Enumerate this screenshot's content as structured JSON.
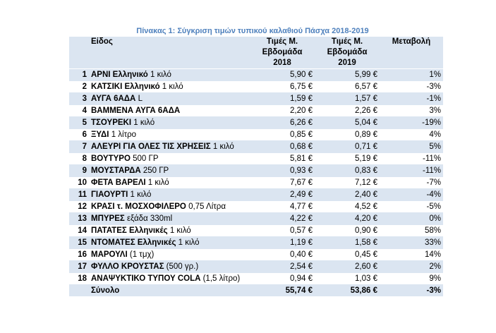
{
  "caption": "Πίνακας 1: Σύγκριση τιμών τυπικού καλαθιού Πάσχα 2018-2019",
  "headers": {
    "item": "Είδος",
    "price2018": [
      "Τιμές Μ.",
      "Εβδομάδα",
      "2018"
    ],
    "price2019": [
      "Τιμές Μ.",
      "Εβδομάδα",
      "2019"
    ],
    "change": "Μεταβολή"
  },
  "rows": [
    {
      "num": "1",
      "bold": "ΑΡΝΙ Ελληνικό",
      "rest": " 1 κιλό",
      "p2018": "5,90 €",
      "p2019": "5,99 €",
      "change": "1%"
    },
    {
      "num": "2",
      "bold": "ΚΑΤΣΙΚΙ Ελληνικό",
      "rest": " 1 κιλό",
      "p2018": "6,75 €",
      "p2019": "6,57 €",
      "change": "-3%"
    },
    {
      "num": "3",
      "bold": "ΑΥΓΑ 6ΑΔΑ",
      "rest": " L",
      "p2018": "1,59 €",
      "p2019": "1,57 €",
      "change": "-1%"
    },
    {
      "num": "4",
      "bold": "ΒΑΜΜΕΝΑ ΑΥΓΑ 6ΑΔΑ",
      "rest": "",
      "p2018": "2,20 €",
      "p2019": "2,26 €",
      "change": "3%"
    },
    {
      "num": "5",
      "bold": "ΤΣΟΥΡΕΚΙ",
      "rest": " 1 κιλό",
      "p2018": "6,26 €",
      "p2019": "5,04 €",
      "change": "-19%"
    },
    {
      "num": "6",
      "bold": "ΞΥΔΙ",
      "rest": " 1 λίτρο",
      "p2018": "0,85 €",
      "p2019": "0,89 €",
      "change": "4%"
    },
    {
      "num": "7",
      "bold": "ΑΛΕΥΡΙ ΓΙΑ ΟΛΕΣ ΤΙΣ ΧΡΗΣΕΙΣ",
      "rest": " 1 κιλό",
      "p2018": "0,68 €",
      "p2019": "0,71 €",
      "change": "5%"
    },
    {
      "num": "8",
      "bold": "ΒΟΥΤΥΡΟ",
      "rest": " 500 ΓΡ",
      "p2018": "5,81 €",
      "p2019": "5,19 €",
      "change": "-11%"
    },
    {
      "num": "9",
      "bold": "ΜΟΥΣΤΑΡΔΑ",
      "rest": " 250 ΓΡ",
      "p2018": "0,93 €",
      "p2019": "0,83 €",
      "change": "-11%"
    },
    {
      "num": "10",
      "bold": "ΦΕΤΑ ΒΑΡΕΛΙ",
      "rest": " 1 κιλό",
      "p2018": "7,67 €",
      "p2019": "7,12 €",
      "change": "-7%"
    },
    {
      "num": "11",
      "bold": "ΓΙΑΟΥΡΤΙ",
      "rest": " 1 κιλό",
      "p2018": "2,49 €",
      "p2019": "2,40 €",
      "change": "-4%"
    },
    {
      "num": "12",
      "bold": "ΚΡΑΣΙ τ. ΜΟΣΧΟΦΙΛΕΡΟ",
      "rest": " 0,75 Λίτρα",
      "p2018": "4,77 €",
      "p2019": "4,52 €",
      "change": "-5%"
    },
    {
      "num": "13",
      "bold": "ΜΠΥΡΕΣ",
      "rest": " εξάδα 330ml",
      "p2018": "4,22 €",
      "p2019": "4,20 €",
      "change": "0%"
    },
    {
      "num": "14",
      "bold": "ΠΑΤΑΤΕΣ Ελληνικές",
      "rest": " 1 κιλό",
      "p2018": "0,57 €",
      "p2019": "0,90 €",
      "change": "58%"
    },
    {
      "num": "15",
      "bold": "ΝΤΟΜΑΤΕΣ Ελληνικές",
      "rest": " 1 κιλό",
      "p2018": "1,19 €",
      "p2019": "1,58 €",
      "change": "33%"
    },
    {
      "num": "16",
      "bold": "ΜΑΡΟΥΛΙ",
      "rest": " (1 τμχ)",
      "p2018": "0,40 €",
      "p2019": "0,45 €",
      "change": "14%"
    },
    {
      "num": "17",
      "bold": "ΦΥΛΛΟ ΚΡΟΥΣΤΑΣ",
      "rest": " (500 γρ.)",
      "p2018": "2,54 €",
      "p2019": "2,60 €",
      "change": "2%"
    },
    {
      "num": "18",
      "bold": "ΑΝΑΨΥΚΤΙΚΟ ΤΥΠΟΥ COLA",
      "rest": " (1,5 λίτρο)",
      "p2018": "0,94 €",
      "p2019": "1,03 €",
      "change": "9%"
    }
  ],
  "total": {
    "label": "Σύνολο",
    "p2018": "55,74 €",
    "p2019": "53,86 €",
    "change": "-3%"
  }
}
